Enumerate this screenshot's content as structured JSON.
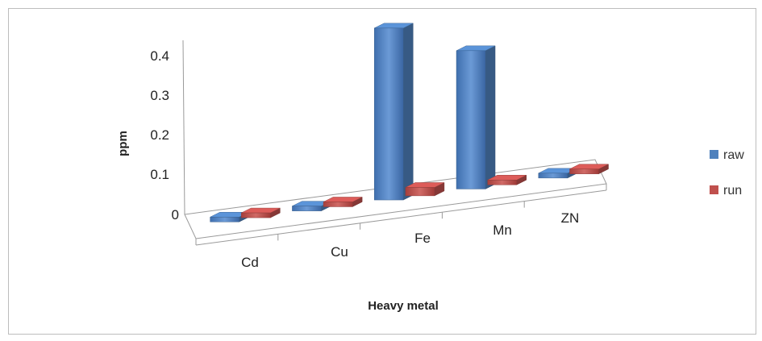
{
  "chart_data": {
    "type": "bar",
    "three_d": true,
    "categories": [
      "Cd",
      "Cu",
      "Fe",
      "Mn",
      "ZN"
    ],
    "series": [
      {
        "name": "raw",
        "color": "#4f81bd",
        "values": [
          0.0,
          0.0,
          0.41,
          0.33,
          0.01
        ]
      },
      {
        "name": "run",
        "color": "#c0504d",
        "values": [
          0.0,
          0.0,
          0.02,
          0.01,
          0.0
        ]
      }
    ],
    "xlabel": "Heavy metal",
    "ylabel": "ppm",
    "ylim": [
      0,
      0.4
    ],
    "yticks": [
      "0",
      "0.1",
      "0.2",
      "0.3",
      "0.4"
    ],
    "grid": false,
    "legend_position": "right"
  }
}
